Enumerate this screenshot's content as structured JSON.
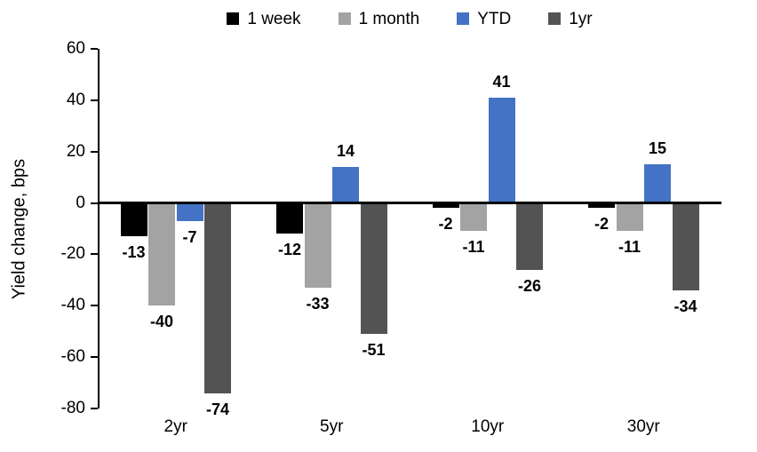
{
  "chart": {
    "ylabel": "Yield change, bps"
  },
  "chart_data": {
    "type": "bar",
    "title": "",
    "categories": [
      "2yr",
      "5yr",
      "10yr",
      "30yr"
    ],
    "series": [
      {
        "name": "1 week",
        "color": "#000000",
        "values": [
          -13,
          -12,
          -2,
          -2
        ]
      },
      {
        "name": "1 month",
        "color": "#A3A3A3",
        "values": [
          -40,
          -33,
          -11,
          -11
        ]
      },
      {
        "name": "YTD",
        "color": "#4472C4",
        "values": [
          -7,
          14,
          41,
          15
        ]
      },
      {
        "name": "1yr",
        "color": "#535353",
        "values": [
          -74,
          -51,
          -26,
          -34
        ]
      }
    ],
    "ylabel": "Yield change, bps",
    "ylim": [
      -80,
      60
    ],
    "ytick_step": 20,
    "yticks": [
      60,
      40,
      20,
      0,
      -20,
      -40,
      -60,
      -80
    ],
    "legend_position": "top",
    "grid": false,
    "axis_color": "#000000"
  }
}
